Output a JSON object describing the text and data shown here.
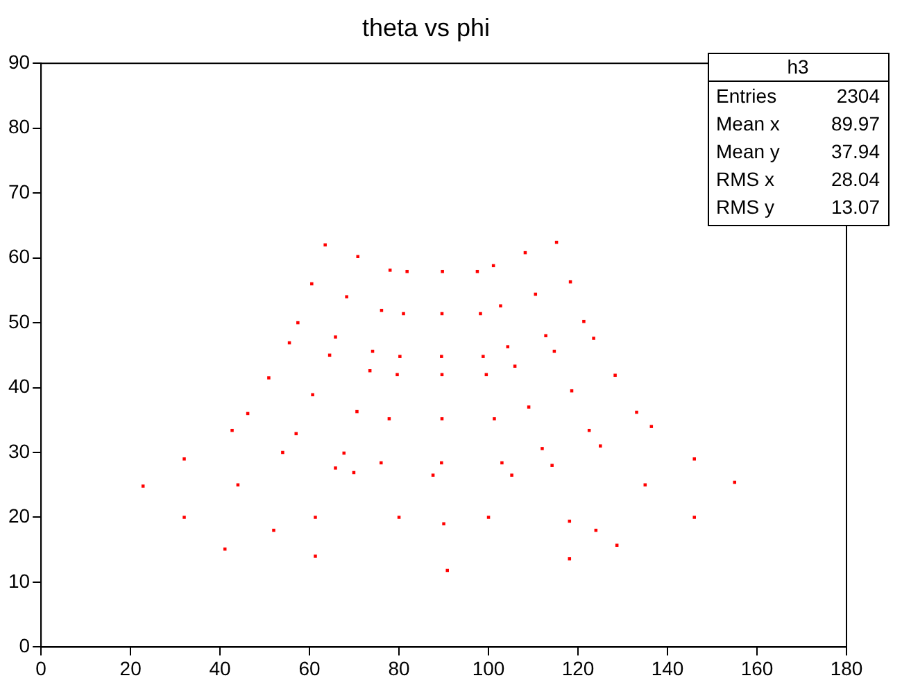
{
  "chart_data": {
    "type": "scatter",
    "title": "theta vs phi",
    "x": [
      63.5,
      78.0,
      57.4,
      74.1,
      70.8,
      65.8,
      60.5,
      76.1,
      68.3,
      81.8,
      97.5,
      80.2,
      98.8,
      89.7,
      89.5,
      81.0,
      98.2,
      89.6,
      101.1,
      115.2,
      104.3,
      121.3,
      108.2,
      112.8,
      102.7,
      118.3,
      110.5,
      55.5,
      73.5,
      46.2,
      67.7,
      64.5,
      57.0,
      50.9,
      70.6,
      60.7,
      79.6,
      99.5,
      76.0,
      103.0,
      89.6,
      89.5,
      77.8,
      101.3,
      89.6,
      105.9,
      123.5,
      112.0,
      133.1,
      114.7,
      122.5,
      109.0,
      128.3,
      118.6,
      22.8,
      42.7,
      65.8,
      61.3,
      41.1,
      44,
      54,
      32,
      32,
      52,
      155.0,
      136.4,
      114.2,
      118.1,
      128.7,
      135,
      125,
      146,
      146,
      124,
      69.9,
      87.6,
      105.2,
      61.3,
      90.8,
      118.1,
      80,
      100,
      90
    ],
    "values": [
      62.0,
      58.1,
      50.0,
      45.6,
      60.2,
      47.8,
      56.0,
      51.9,
      54.0,
      57.9,
      57.9,
      44.8,
      44.8,
      57.9,
      44.8,
      51.4,
      51.4,
      51.4,
      58.8,
      62.4,
      46.3,
      50.2,
      60.8,
      48.0,
      52.6,
      56.3,
      54.4,
      46.9,
      42.6,
      36.0,
      29.9,
      45.0,
      32.9,
      41.5,
      36.3,
      38.9,
      42.0,
      42.0,
      28.4,
      28.4,
      42.0,
      28.4,
      35.2,
      35.2,
      35.2,
      43.3,
      47.6,
      30.6,
      36.2,
      45.6,
      33.4,
      37.0,
      41.9,
      39.5,
      24.8,
      33.4,
      27.6,
      20.0,
      15.1,
      25,
      30,
      29,
      20,
      18,
      25.4,
      34.0,
      28.0,
      19.4,
      15.7,
      25,
      31,
      29,
      20,
      18,
      26.9,
      26.5,
      26.5,
      14.0,
      11.8,
      13.6,
      20,
      20,
      19
    ],
    "color": "#ff0000",
    "marker": "square",
    "xlim": [
      0,
      180
    ],
    "xticks": [
      0,
      20,
      40,
      60,
      80,
      100,
      120,
      140,
      160,
      180
    ],
    "ylim": [
      0,
      90
    ],
    "yticks": [
      0,
      10,
      20,
      30,
      40,
      50,
      60,
      70,
      80,
      90
    ],
    "grid": false,
    "legend": false,
    "annotations": [
      "h3",
      "Entries",
      "2304",
      "Mean x",
      "89.97",
      "Mean y",
      "37.94",
      "RMS x",
      "28.04",
      "RMS y",
      "13.07"
    ]
  }
}
